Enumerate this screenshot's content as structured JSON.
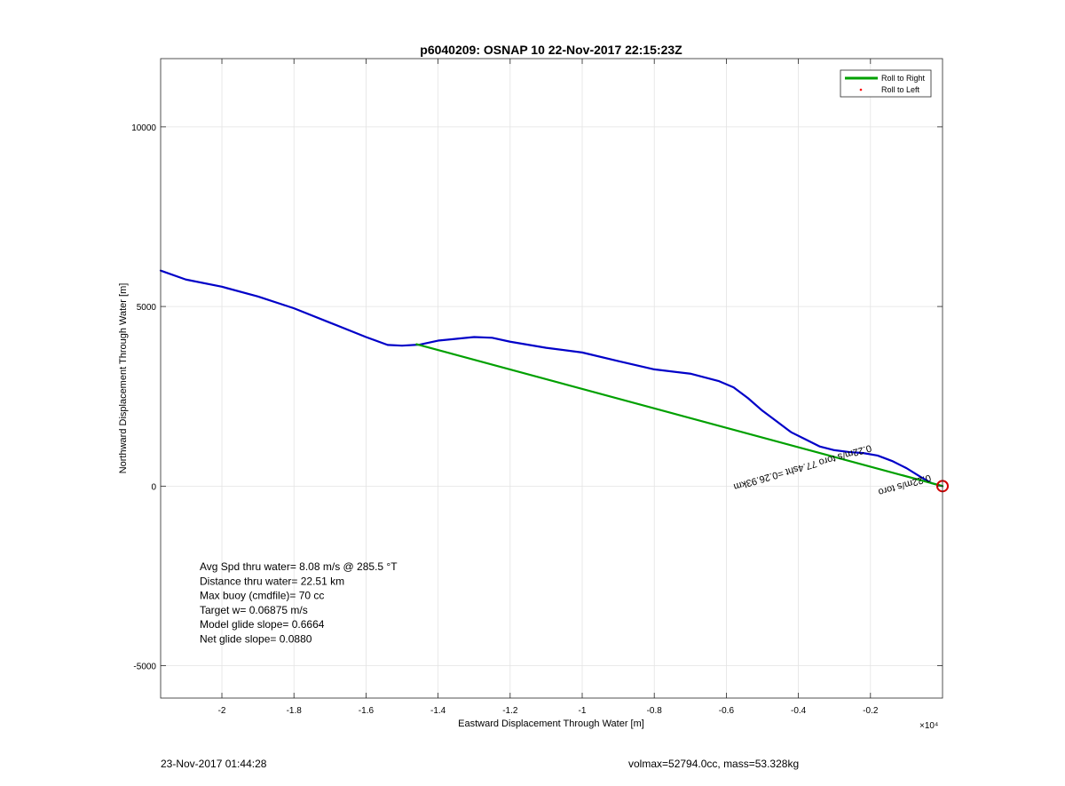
{
  "footer": {
    "timestamp": "23-Nov-2017 01:44:28",
    "info": "volmax=52794.0cc, mass=53.328kg"
  },
  "chart_data": {
    "type": "line",
    "title": "p6040209: OSNAP 10 22-Nov-2017 22:15:23Z",
    "xlabel": "Eastward Displacement Through Water [m]",
    "ylabel": "Northward Displacement Through Water [m]",
    "x_exponent_label": "×10⁴",
    "x_exponent": 4,
    "xlim": [
      -2.17,
      0.0
    ],
    "ylim": [
      -5900,
      11900
    ],
    "x_ticks": [
      -2,
      -1.8,
      -1.6,
      -1.4,
      -1.2,
      -1,
      -0.8,
      -0.6,
      -0.4,
      -0.2
    ],
    "y_ticks": [
      -5000,
      0,
      5000,
      10000
    ],
    "grid": true,
    "legend": {
      "placement": "top-right",
      "entries": [
        {
          "label": "Roll to Right",
          "color": "#00a000",
          "style": "line"
        },
        {
          "label": "Roll to Left",
          "color": "#ff0000",
          "style": "dot"
        }
      ]
    },
    "series": [
      {
        "color": "#0000c8",
        "x": [
          -2.17,
          -2.1,
          -2.0,
          -1.9,
          -1.8,
          -1.7,
          -1.6,
          -1.54,
          -1.5,
          -1.45,
          -1.4,
          -1.35,
          -1.3,
          -1.25,
          -1.2,
          -1.1,
          -1.0,
          -0.9,
          -0.8,
          -0.7,
          -0.62,
          -0.58,
          -0.54,
          -0.5,
          -0.46,
          -0.42,
          -0.38,
          -0.34,
          -0.3,
          -0.26,
          -0.22,
          -0.18,
          -0.14,
          -0.1,
          -0.06,
          -0.03,
          0.0
        ],
        "y": [
          6000,
          5750,
          5550,
          5280,
          4950,
          4550,
          4150,
          3930,
          3910,
          3940,
          4050,
          4100,
          4150,
          4130,
          4020,
          3850,
          3720,
          3480,
          3250,
          3130,
          2920,
          2750,
          2450,
          2100,
          1800,
          1500,
          1300,
          1100,
          1000,
          950,
          920,
          850,
          700,
          500,
          250,
          80,
          0
        ]
      },
      {
        "color": "#00a000",
        "x": [
          -1.46,
          0.0
        ],
        "y": [
          3950,
          0
        ]
      }
    ],
    "annotations": [
      {
        "text": "Avg Spd thru water=  8.08 m/s @ 285.5 °T"
      },
      {
        "text": "Distance thru water= 22.51 km"
      },
      {
        "text": "Max buoy (cmdfile)= 70 cc"
      },
      {
        "text": "Target w= 0.06875 m/s"
      },
      {
        "text": "Model glide slope= 0.6664"
      },
      {
        "text": "Net glide slope= 0.0880"
      }
    ],
    "rotated_labels": [
      {
        "text": "0.22m/s toro 77.4sht =0.26.93km",
        "x": -0.2,
        "y": 1150,
        "angle": 164
      },
      {
        "text": "0.22m/s toro",
        "x": -0.035,
        "y": 320,
        "angle": 164
      }
    ],
    "end_marker": {
      "x": 0.0,
      "y": 0,
      "color": "#d00000"
    }
  }
}
